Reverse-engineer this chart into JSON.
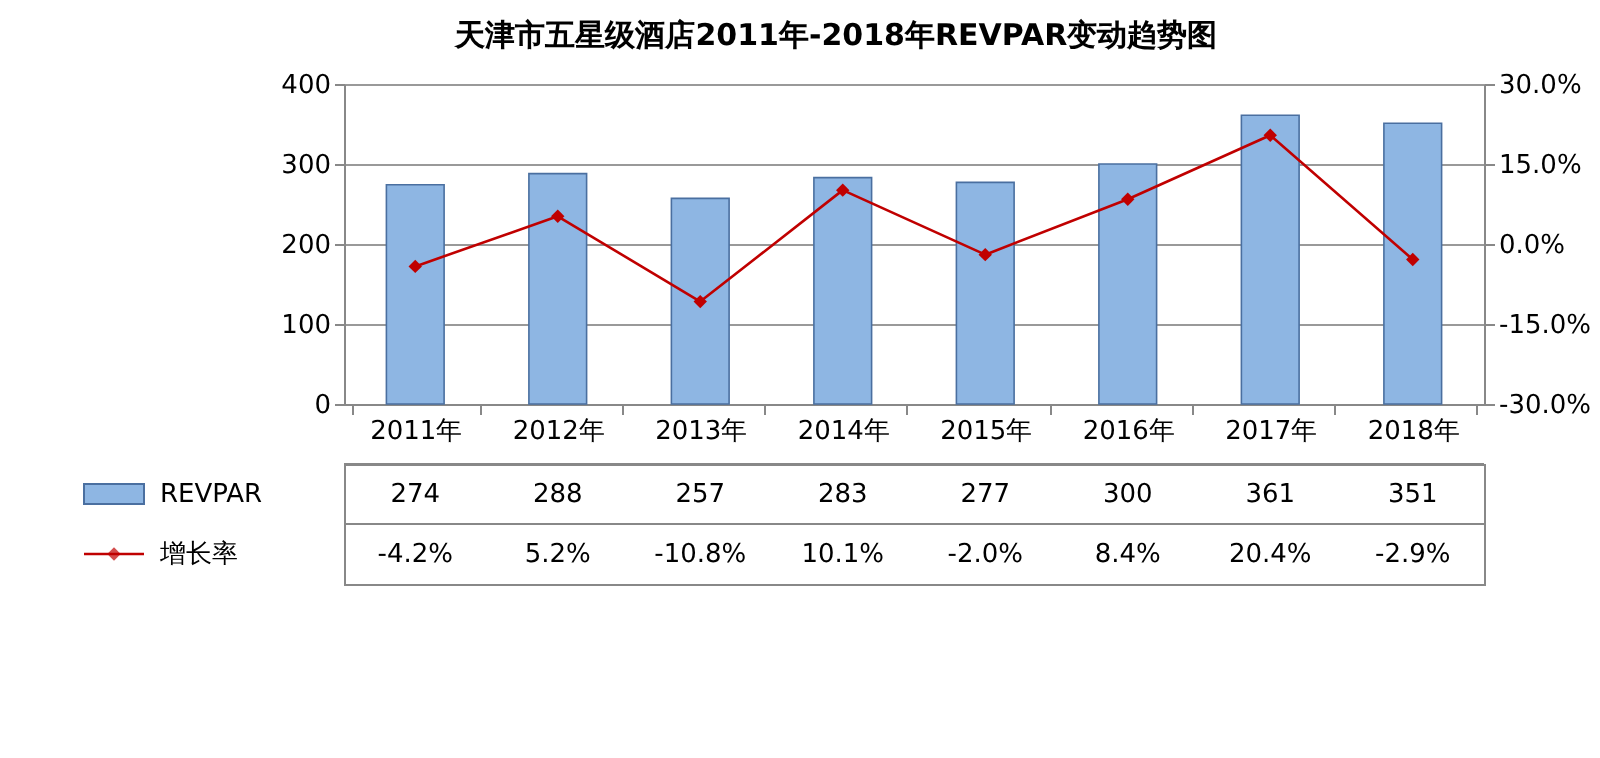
{
  "chart_data": {
    "type": "bar",
    "title": "天津市五星级酒店2011年-2018年REVPAR变动趋势图",
    "categories": [
      "2011年",
      "2012年",
      "2013年",
      "2014年",
      "2015年",
      "2016年",
      "2017年",
      "2018年"
    ],
    "series": [
      {
        "name": "REVPAR",
        "color": "#8eb6e3",
        "values": [
          274,
          288,
          257,
          283,
          277,
          300,
          361,
          351
        ],
        "value_labels": [
          "274",
          "288",
          "257",
          "283",
          "277",
          "300",
          "361",
          "351"
        ]
      },
      {
        "name": "增长率",
        "type": "line",
        "axis": "y2",
        "color": "#c00000",
        "values": [
          -4.2,
          5.2,
          -10.8,
          10.1,
          -2.0,
          8.4,
          20.4,
          -2.9
        ],
        "value_labels": [
          "-4.2%",
          "5.2%",
          "-10.8%",
          "10.1%",
          "-2.0%",
          "8.4%",
          "20.4%",
          "-2.9%"
        ]
      }
    ],
    "ylim": [
      0,
      400
    ],
    "yticks": [
      0,
      100,
      200,
      300,
      400
    ],
    "y2lim": [
      -30,
      30
    ],
    "y2ticks": [
      {
        "value": -30,
        "label": "-30.0%"
      },
      {
        "value": -15,
        "label": "-15.0%"
      },
      {
        "value": 0,
        "label": "0.0%"
      },
      {
        "value": 15,
        "label": "15.0%"
      },
      {
        "value": 30,
        "label": "30.0%"
      }
    ],
    "grid": "y",
    "legend": "bottom",
    "marker": "diamond"
  }
}
